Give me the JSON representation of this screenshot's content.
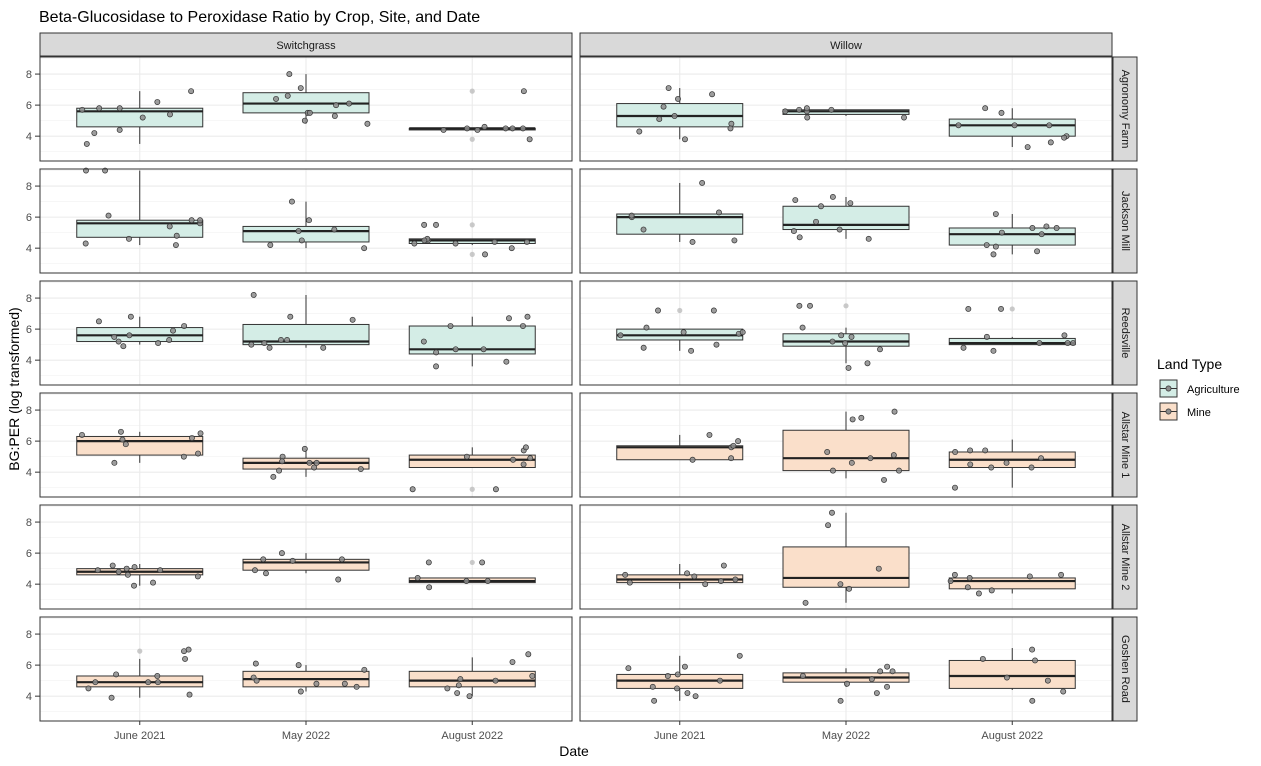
{
  "chart_data": {
    "type": "box",
    "title": "Beta-Glucosidase to Peroxidase Ratio by Crop, Site, and Date",
    "xlabel": "Date",
    "ylabel": "BG:PER (log transformed)",
    "categories": [
      "June 2021",
      "May 2022",
      "August 2022"
    ],
    "yticks": [
      4,
      6,
      8
    ],
    "ylim": [
      2.4,
      9.1
    ],
    "columns": [
      "Switchgrass",
      "Willow"
    ],
    "rows": [
      "Agronomy Farm",
      "Jackson Mill",
      "Reedsville",
      "Allstar Mine 1",
      "Allstar Mine 2",
      "Goshen Road"
    ],
    "legend": {
      "title": "Land Type",
      "placement": "right",
      "entries": [
        {
          "label": "Agriculture",
          "fill": "#d4ede6"
        },
        {
          "label": "Mine",
          "fill": "#fadfca"
        }
      ]
    },
    "colors": {
      "Agriculture": "#d4ede6",
      "Mine": "#fadfca",
      "strip": "#d9d9d9",
      "point": "#8c8c8c"
    },
    "grid": true,
    "panels": [
      {
        "row": "Agronomy Farm",
        "column": "Switchgrass",
        "land": "Agriculture",
        "boxes": [
          {
            "category": "June 2021",
            "min": 3.5,
            "q1": 4.6,
            "median": 5.6,
            "q3": 5.8,
            "max": 6.9,
            "outliers": [],
            "points": [
              5.4,
              5.2,
              4.4,
              5.7,
              5.8,
              6.2,
              3.5,
              6.9,
              5.8,
              4.2
            ]
          },
          {
            "category": "May 2022",
            "min": 4.8,
            "q1": 5.5,
            "median": 6.1,
            "q3": 6.8,
            "max": 8.0,
            "outliers": [],
            "points": [
              8.0,
              6.4,
              6.0,
              5.0,
              5.5,
              4.8,
              5.3,
              5.5,
              7.1,
              6.1,
              6.6
            ]
          },
          {
            "category": "August 2022",
            "min": 4.4,
            "q1": 4.4,
            "median": 4.5,
            "q3": 4.5,
            "max": 4.5,
            "outliers": [
              3.8,
              6.9
            ],
            "points": [
              3.8,
              4.6,
              4.5,
              4.5,
              4.4,
              4.5,
              6.9,
              4.4,
              4.5
            ]
          }
        ]
      },
      {
        "row": "Agronomy Farm",
        "column": "Willow",
        "land": "Agriculture",
        "boxes": [
          {
            "category": "June 2021",
            "min": 3.8,
            "q1": 4.6,
            "median": 5.3,
            "q3": 6.1,
            "max": 7.1,
            "outliers": [],
            "points": [
              5.3,
              4.8,
              3.8,
              4.5,
              6.7,
              7.1,
              5.1,
              6.4,
              4.3,
              5.9
            ]
          },
          {
            "category": "May 2022",
            "min": 5.3,
            "q1": 5.4,
            "median": 5.6,
            "q3": 5.7,
            "max": 5.7,
            "outliers": [],
            "points": [
              5.2,
              5.6,
              5.2,
              5.7,
              5.6,
              5.8,
              5.7
            ]
          },
          {
            "category": "August 2022",
            "min": 3.3,
            "q1": 4.0,
            "median": 4.7,
            "q3": 5.1,
            "max": 5.8,
            "outliers": [],
            "points": [
              4.7,
              4.0,
              3.6,
              5.8,
              3.3,
              4.7,
              3.9,
              4.7,
              5.5
            ]
          }
        ]
      },
      {
        "row": "Jackson Mill",
        "column": "Switchgrass",
        "land": "Agriculture",
        "boxes": [
          {
            "category": "June 2021",
            "min": 4.2,
            "q1": 4.7,
            "median": 5.6,
            "q3": 5.8,
            "max": 9.0,
            "outliers": [],
            "points": [
              4.8,
              5.8,
              9.0,
              4.6,
              4.2,
              9.0,
              6.1,
              5.6,
              4.3,
              5.8,
              5.4
            ]
          },
          {
            "category": "May 2022",
            "min": 4.0,
            "q1": 4.4,
            "median": 5.1,
            "q3": 5.4,
            "max": 7.0,
            "outliers": [],
            "points": [
              7.0,
              4.2,
              4.0,
              5.2,
              4.5,
              5.1,
              5.8
            ]
          },
          {
            "category": "August 2022",
            "min": 4.2,
            "q1": 4.3,
            "median": 4.5,
            "q3": 4.6,
            "max": 4.6,
            "outliers": [
              3.6,
              5.5
            ],
            "points": [
              4.3,
              4.5,
              4.6,
              4.3,
              4.0,
              3.6,
              5.5,
              4.4,
              4.5,
              5.5,
              4.4
            ]
          }
        ]
      },
      {
        "row": "Jackson Mill",
        "column": "Willow",
        "land": "Agriculture",
        "boxes": [
          {
            "category": "June 2021",
            "min": 4.4,
            "q1": 4.9,
            "median": 6.0,
            "q3": 6.2,
            "max": 8.2,
            "outliers": [],
            "points": [
              4.4,
              5.2,
              8.2,
              6.0,
              6.1,
              4.5,
              6.3
            ]
          },
          {
            "category": "May 2022",
            "min": 4.6,
            "q1": 5.2,
            "median": 5.5,
            "q3": 6.7,
            "max": 7.3,
            "outliers": [],
            "points": [
              7.1,
              5.7,
              4.7,
              6.7,
              4.6,
              5.2,
              7.3,
              6.9,
              5.1
            ]
          },
          {
            "category": "August 2022",
            "min": 3.6,
            "q1": 4.2,
            "median": 4.9,
            "q3": 5.3,
            "max": 6.2,
            "outliers": [],
            "points": [
              5.4,
              3.8,
              5.3,
              3.6,
              4.1,
              5.0,
              4.9,
              4.2,
              6.2,
              5.3
            ]
          }
        ]
      },
      {
        "row": "Reedsville",
        "column": "Switchgrass",
        "land": "Agriculture",
        "boxes": [
          {
            "category": "June 2021",
            "min": 5.0,
            "q1": 5.2,
            "median": 5.6,
            "q3": 6.1,
            "max": 6.8,
            "outliers": [],
            "points": [
              5.6,
              5.3,
              5.5,
              4.9,
              6.2,
              5.1,
              5.2,
              5.9,
              6.8,
              6.5
            ]
          },
          {
            "category": "May 2022",
            "min": 4.8,
            "q1": 5.0,
            "median": 5.2,
            "q3": 6.3,
            "max": 8.2,
            "outliers": [],
            "points": [
              5.0,
              5.3,
              6.8,
              8.2,
              6.6,
              5.1,
              4.8,
              5.3,
              4.8
            ]
          },
          {
            "category": "August 2022",
            "min": 3.6,
            "q1": 4.4,
            "median": 4.7,
            "q3": 6.2,
            "max": 6.8,
            "outliers": [],
            "points": [
              3.6,
              4.7,
              5.2,
              6.2,
              6.8,
              4.5,
              6.7,
              6.2,
              4.7,
              3.9
            ]
          }
        ]
      },
      {
        "row": "Reedsville",
        "column": "Willow",
        "land": "Agriculture",
        "boxes": [
          {
            "category": "June 2021",
            "min": 4.6,
            "q1": 5.3,
            "median": 5.6,
            "q3": 6.0,
            "max": 6.0,
            "outliers": [
              7.2
            ],
            "points": [
              4.8,
              5.0,
              7.2,
              4.6,
              7.2,
              5.7,
              5.6,
              5.8,
              6.1,
              5.8
            ]
          },
          {
            "category": "May 2022",
            "min": 3.8,
            "q1": 4.9,
            "median": 5.2,
            "q3": 5.7,
            "max": 6.1,
            "outliers": [
              7.5
            ],
            "points": [
              5.6,
              5.2,
              3.8,
              7.5,
              5.5,
              7.5,
              4.7,
              6.1,
              3.5,
              5.1
            ]
          },
          {
            "category": "August 2022",
            "min": 5.0,
            "q1": 5.0,
            "median": 5.1,
            "q3": 5.4,
            "max": 5.5,
            "outliers": [
              7.3
            ],
            "points": [
              5.1,
              7.3,
              5.1,
              7.3,
              4.8,
              5.6,
              4.6,
              5.5,
              5.1
            ]
          }
        ]
      },
      {
        "row": "Allstar Mine 1",
        "column": "Switchgrass",
        "land": "Mine",
        "boxes": [
          {
            "category": "June 2021",
            "min": 4.6,
            "q1": 5.1,
            "median": 6.0,
            "q3": 6.3,
            "max": 6.6,
            "outliers": [],
            "points": [
              6.2,
              6.6,
              4.6,
              6.5,
              5.8,
              5.0,
              6.4,
              6.1,
              5.2
            ]
          },
          {
            "category": "May 2022",
            "min": 3.7,
            "q1": 4.2,
            "median": 4.6,
            "q3": 4.9,
            "max": 5.5,
            "outliers": [],
            "points": [
              4.6,
              4.1,
              5.5,
              3.7,
              4.3,
              5.0,
              4.6,
              4.7,
              4.2
            ]
          },
          {
            "category": "August 2022",
            "min": 4.3,
            "q1": 4.3,
            "median": 4.8,
            "q3": 5.1,
            "max": 5.6,
            "outliers": [
              2.9
            ],
            "points": [
              5.0,
              2.9,
              2.9,
              4.8,
              4.9,
              5.4,
              4.5,
              5.6
            ]
          }
        ]
      },
      {
        "row": "Allstar Mine 1",
        "column": "Willow",
        "land": "Mine",
        "boxes": [
          {
            "category": "June 2021",
            "min": 4.8,
            "q1": 4.8,
            "median": 5.6,
            "q3": 5.7,
            "max": 6.4,
            "outliers": [],
            "points": [
              5.6,
              4.9,
              5.7,
              6.0,
              4.8,
              6.4
            ]
          },
          {
            "category": "May 2022",
            "min": 3.6,
            "q1": 4.1,
            "median": 4.9,
            "q3": 6.7,
            "max": 7.9,
            "outliers": [],
            "points": [
              5.1,
              3.5,
              4.1,
              7.4,
              7.5,
              5.3,
              4.6,
              4.1,
              7.9,
              4.9
            ]
          },
          {
            "category": "August 2022",
            "min": 3.0,
            "q1": 4.3,
            "median": 4.8,
            "q3": 5.3,
            "max": 6.1,
            "outliers": [],
            "points": [
              3.0,
              5.4,
              4.9,
              4.3,
              5.3,
              4.3,
              5.4,
              4.5,
              4.6
            ]
          }
        ]
      },
      {
        "row": "Allstar Mine 2",
        "column": "Switchgrass",
        "land": "Mine",
        "boxes": [
          {
            "category": "June 2021",
            "min": 3.9,
            "q1": 4.6,
            "median": 4.8,
            "q3": 5.0,
            "max": 5.3,
            "outliers": [],
            "points": [
              4.8,
              5.2,
              4.9,
              3.9,
              5.1,
              4.6,
              5.0,
              4.5,
              4.1,
              4.9
            ]
          },
          {
            "category": "May 2022",
            "min": 4.7,
            "q1": 4.9,
            "median": 5.4,
            "q3": 5.6,
            "max": 6.0,
            "outliers": [],
            "points": [
              4.9,
              6.0,
              5.6,
              4.7,
              5.5,
              4.3,
              5.6
            ]
          },
          {
            "category": "August 2022",
            "min": 4.1,
            "q1": 4.1,
            "median": 4.2,
            "q3": 4.4,
            "max": 4.4,
            "outliers": [
              5.4
            ],
            "points": [
              4.2,
              3.8,
              5.4,
              5.4,
              4.2,
              4.4
            ]
          }
        ]
      },
      {
        "row": "Allstar Mine 2",
        "column": "Willow",
        "land": "Mine",
        "boxes": [
          {
            "category": "June 2021",
            "min": 3.7,
            "q1": 4.1,
            "median": 4.3,
            "q3": 4.6,
            "max": 5.3,
            "outliers": [],
            "points": [
              4.6,
              4.0,
              4.5,
              4.7,
              4.2,
              4.1,
              4.3,
              5.2
            ]
          },
          {
            "category": "May 2022",
            "min": 2.8,
            "q1": 3.8,
            "median": 4.4,
            "q3": 6.4,
            "max": 8.6,
            "outliers": [],
            "points": [
              7.8,
              3.7,
              2.8,
              5.0,
              8.6,
              4.0
            ]
          },
          {
            "category": "August 2022",
            "min": 3.4,
            "q1": 3.7,
            "median": 4.2,
            "q3": 4.4,
            "max": 4.4,
            "outliers": [],
            "points": [
              4.2,
              3.4,
              4.4,
              4.6,
              3.6,
              4.5,
              4.6,
              3.8
            ]
          }
        ]
      },
      {
        "row": "Goshen Road",
        "column": "Switchgrass",
        "land": "Mine",
        "boxes": [
          {
            "category": "June 2021",
            "min": 3.9,
            "q1": 4.6,
            "median": 4.9,
            "q3": 5.3,
            "max": 6.4,
            "outliers": [
              6.9
            ],
            "points": [
              5.3,
              7.0,
              4.9,
              4.9,
              4.9,
              5.4,
              6.9,
              4.5,
              3.9,
              6.4,
              4.1
            ]
          },
          {
            "category": "May 2022",
            "min": 4.3,
            "q1": 4.6,
            "median": 5.1,
            "q3": 5.6,
            "max": 6.0,
            "outliers": [],
            "points": [
              6.1,
              4.3,
              5.2,
              4.8,
              6.0,
              5.0,
              4.8,
              5.7,
              4.6
            ]
          },
          {
            "category": "August 2022",
            "min": 4.0,
            "q1": 4.6,
            "median": 5.0,
            "q3": 5.6,
            "max": 6.5,
            "outliers": [],
            "points": [
              4.2,
              5.0,
              4.7,
              6.7,
              4.5,
              5.3,
              4.0,
              6.2,
              5.1
            ]
          }
        ]
      },
      {
        "row": "Goshen Road",
        "column": "Willow",
        "land": "Mine",
        "boxes": [
          {
            "category": "June 2021",
            "min": 3.7,
            "q1": 4.5,
            "median": 5.0,
            "q3": 5.4,
            "max": 6.6,
            "outliers": [],
            "points": [
              6.6,
              4.5,
              5.0,
              5.3,
              5.4,
              3.7,
              4.2,
              4.6,
              5.8,
              5.9,
              4.0
            ]
          },
          {
            "category": "May 2022",
            "min": 4.6,
            "q1": 4.9,
            "median": 5.2,
            "q3": 5.5,
            "max": 5.8,
            "outliers": [],
            "points": [
              3.7,
              5.9,
              4.8,
              5.1,
              5.6,
              4.2,
              5.6,
              5.3,
              4.6
            ]
          },
          {
            "category": "August 2022",
            "min": 4.4,
            "q1": 4.5,
            "median": 5.3,
            "q3": 6.3,
            "max": 7.1,
            "outliers": [],
            "points": [
              5.0,
              7.0,
              6.3,
              4.3,
              5.2,
              6.4,
              3.7
            ]
          }
        ]
      }
    ]
  }
}
